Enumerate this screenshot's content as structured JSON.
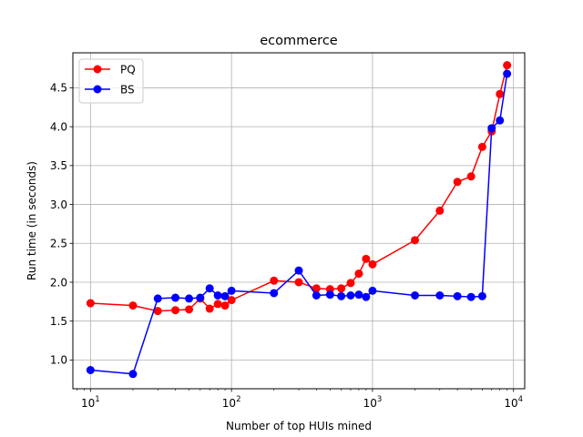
{
  "chart_data": {
    "type": "line",
    "title": "ecommerce",
    "xlabel": "Number of top HUIs mined",
    "ylabel": "Run time (in seconds)",
    "xscale": "log",
    "xlim": [
      7.5,
      12000
    ],
    "ylim": [
      0.63,
      4.95
    ],
    "grid": true,
    "legend_position": "top-left",
    "x_ticks": [
      {
        "value": 10,
        "base": "10",
        "exp": "1"
      },
      {
        "value": 100,
        "base": "10",
        "exp": "2"
      },
      {
        "value": 1000,
        "base": "10",
        "exp": "3"
      },
      {
        "value": 10000,
        "base": "10",
        "exp": "4"
      }
    ],
    "y_ticks": [
      {
        "value": 1.0,
        "label": "1.0"
      },
      {
        "value": 1.5,
        "label": "1.5"
      },
      {
        "value": 2.0,
        "label": "2.0"
      },
      {
        "value": 2.5,
        "label": "2.5"
      },
      {
        "value": 3.0,
        "label": "3.0"
      },
      {
        "value": 3.5,
        "label": "3.5"
      },
      {
        "value": 4.0,
        "label": "4.0"
      },
      {
        "value": 4.5,
        "label": "4.5"
      }
    ],
    "series": [
      {
        "name": "PQ",
        "color": "#ff0000",
        "points": [
          [
            10,
            1.73
          ],
          [
            20,
            1.7
          ],
          [
            30,
            1.63
          ],
          [
            40,
            1.64
          ],
          [
            50,
            1.65
          ],
          [
            60,
            1.79
          ],
          [
            70,
            1.66
          ],
          [
            80,
            1.72
          ],
          [
            90,
            1.7
          ],
          [
            100,
            1.77
          ],
          [
            200,
            2.02
          ],
          [
            300,
            2.0
          ],
          [
            400,
            1.92
          ],
          [
            500,
            1.91
          ],
          [
            600,
            1.92
          ],
          [
            700,
            1.99
          ],
          [
            800,
            2.11
          ],
          [
            900,
            2.3
          ],
          [
            1000,
            2.23
          ],
          [
            2000,
            2.54
          ],
          [
            3000,
            2.92
          ],
          [
            4000,
            3.29
          ],
          [
            5000,
            3.36
          ],
          [
            6000,
            3.74
          ],
          [
            7000,
            3.94
          ],
          [
            8000,
            4.42
          ],
          [
            9000,
            4.79
          ]
        ]
      },
      {
        "name": "BS",
        "color": "#0000ff",
        "points": [
          [
            10,
            0.87
          ],
          [
            20,
            0.82
          ],
          [
            30,
            1.79
          ],
          [
            40,
            1.8
          ],
          [
            50,
            1.79
          ],
          [
            60,
            1.8
          ],
          [
            70,
            1.92
          ],
          [
            80,
            1.83
          ],
          [
            90,
            1.82
          ],
          [
            100,
            1.89
          ],
          [
            200,
            1.86
          ],
          [
            300,
            2.15
          ],
          [
            400,
            1.83
          ],
          [
            500,
            1.84
          ],
          [
            600,
            1.82
          ],
          [
            700,
            1.83
          ],
          [
            800,
            1.84
          ],
          [
            900,
            1.81
          ],
          [
            1000,
            1.89
          ],
          [
            2000,
            1.83
          ],
          [
            3000,
            1.83
          ],
          [
            4000,
            1.82
          ],
          [
            5000,
            1.81
          ],
          [
            6000,
            1.82
          ],
          [
            7000,
            3.98
          ],
          [
            8000,
            4.08
          ],
          [
            9000,
            4.68
          ]
        ]
      }
    ]
  }
}
